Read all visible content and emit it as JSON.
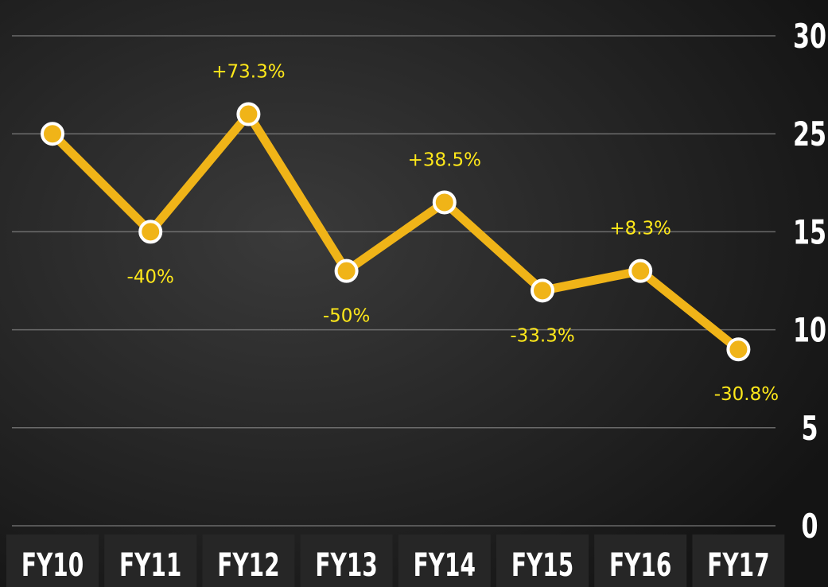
{
  "chart_data": {
    "type": "line",
    "categories": [
      "FY10",
      "FY11",
      "FY12",
      "FY13",
      "FY14",
      "FY15",
      "FY16",
      "FY17"
    ],
    "values": [
      25,
      15,
      26,
      13,
      18,
      12,
      13,
      9
    ],
    "change_labels": [
      null,
      "-40%",
      "+73.3%",
      "-50%",
      "+38.5%",
      "-33.3%",
      "+8.3%",
      "-30.8%"
    ],
    "color": "#f0b418",
    "ylim": [
      0,
      30
    ],
    "yticks": [
      0,
      5,
      10,
      15,
      25,
      30
    ],
    "grid": true
  }
}
